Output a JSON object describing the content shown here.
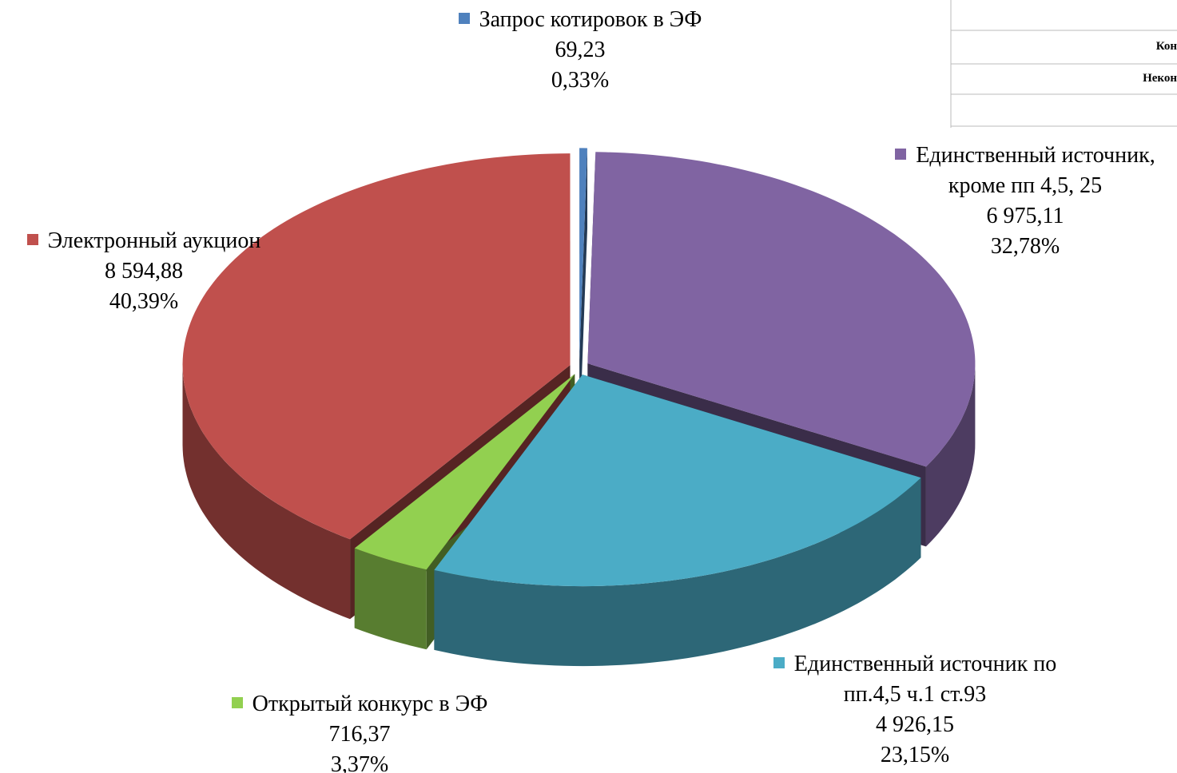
{
  "chart_data": {
    "type": "pie3d",
    "categories": [
      "Запрос котировок в ЭФ",
      "Единственный источник, кроме пп 4,5, 25",
      "Единственный источник по пп.4,5 ч.1 ст.93",
      "Открытый конкурс в ЭФ",
      "Электронный аукцион"
    ],
    "values": [
      69.23,
      6975.11,
      4926.15,
      716.37,
      8594.88
    ],
    "value_labels": [
      "69,23",
      "6 975,11",
      "4 926,15",
      "716,37",
      "8 594,88"
    ],
    "percents": [
      0.33,
      32.78,
      23.15,
      3.37,
      40.39
    ],
    "percent_labels": [
      "0,33%",
      "32,78%",
      "23,15%",
      "3,37%",
      "40,39%"
    ],
    "colors": [
      "#4f81bd",
      "#8064a2",
      "#4bacc6",
      "#92d050",
      "#c0504d"
    ]
  },
  "table_fragment": {
    "rows": [
      "Кон",
      "Некон"
    ]
  }
}
